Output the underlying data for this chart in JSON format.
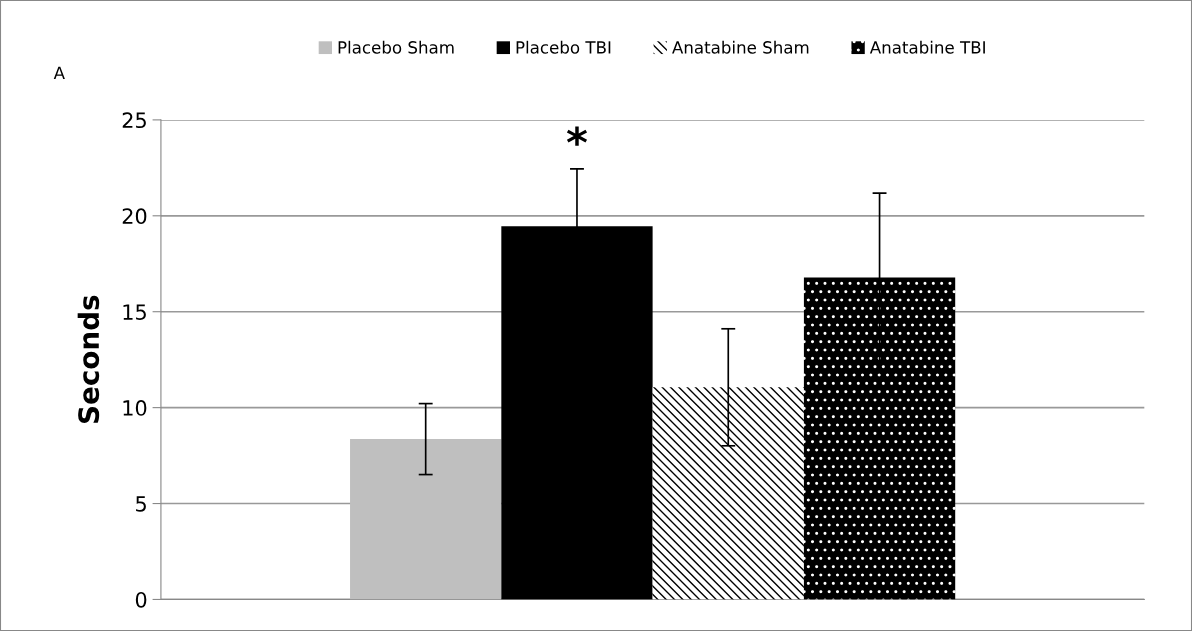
{
  "chart_data": {
    "type": "bar",
    "ylabel": "Seconds",
    "categories": [
      null
    ],
    "series": [
      {
        "name": "Placebo Sham",
        "color": "#bfbfbf",
        "values": [
          8.36
        ],
        "errors": [
          1.85
        ]
      },
      {
        "name": "Placebo TBI",
        "color": "#000000",
        "values": [
          19.45
        ],
        "errors": [
          3.0
        ]
      },
      {
        "name": "Anatabine Sham",
        "color": "#ffffff",
        "values": [
          11.06
        ],
        "errors": [
          3.05
        ]
      },
      {
        "name": "Anatabine TBI",
        "color": "#000000",
        "values": [
          16.78
        ],
        "errors": [
          4.4
        ]
      }
    ],
    "ylim": [
      0,
      25
    ],
    "yticks": [
      0,
      5,
      10,
      15,
      20,
      25
    ],
    "grid": "y",
    "legend": "top",
    "annotations": [
      "A",
      "*"
    ]
  }
}
